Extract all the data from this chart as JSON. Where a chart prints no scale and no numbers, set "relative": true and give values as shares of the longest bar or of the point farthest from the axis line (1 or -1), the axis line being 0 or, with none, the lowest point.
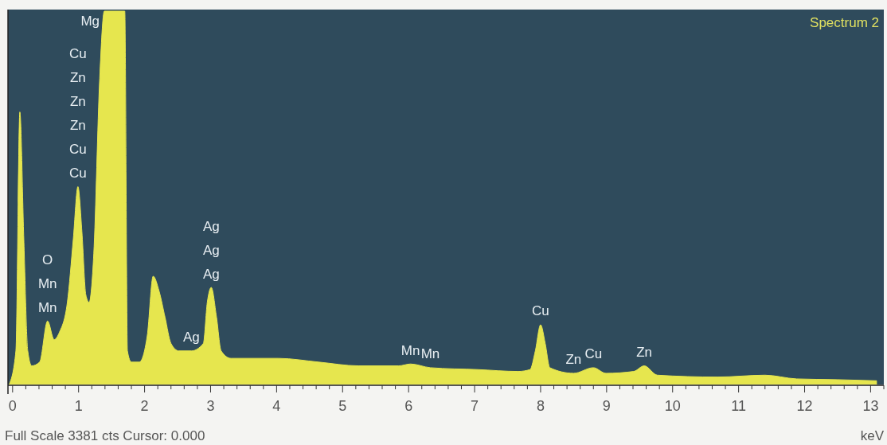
{
  "chart_data": {
    "type": "area",
    "relative": true,
    "xlabel": "keV",
    "color": "#e6e64e",
    "grid": false,
    "xlim": [
      -0.07,
      13.2
    ],
    "xticks": [
      0,
      {
        "value": 0.2,
        "label": null
      },
      {
        "value": 0.4,
        "label": null
      },
      {
        "value": 0.6,
        "label": null
      },
      {
        "value": 0.8,
        "label": null
      },
      1,
      {
        "value": 1.2,
        "label": null
      },
      {
        "value": 1.4,
        "label": null
      },
      {
        "value": 1.6,
        "label": null
      },
      {
        "value": 1.8,
        "label": null
      },
      2,
      {
        "value": 2.2,
        "label": null
      },
      {
        "value": 2.4,
        "label": null
      },
      {
        "value": 2.6,
        "label": null
      },
      {
        "value": 2.8,
        "label": null
      },
      3,
      {
        "value": 3.2,
        "label": null
      },
      {
        "value": 3.4,
        "label": null
      },
      {
        "value": 3.6,
        "label": null
      },
      {
        "value": 3.8,
        "label": null
      },
      4,
      {
        "value": 4.2,
        "label": null
      },
      {
        "value": 4.4,
        "label": null
      },
      {
        "value": 4.6,
        "label": null
      },
      {
        "value": 4.8,
        "label": null
      },
      5,
      {
        "value": 5.2,
        "label": null
      },
      {
        "value": 5.4,
        "label": null
      },
      {
        "value": 5.6,
        "label": null
      },
      {
        "value": 5.8,
        "label": null
      },
      6,
      {
        "value": 6.2,
        "label": null
      },
      {
        "value": 6.4,
        "label": null
      },
      {
        "value": 6.6,
        "label": null
      },
      {
        "value": 6.8,
        "label": null
      },
      7,
      {
        "value": 7.2,
        "label": null
      },
      {
        "value": 7.4,
        "label": null
      },
      {
        "value": 7.6,
        "label": null
      },
      {
        "value": 7.8,
        "label": null
      },
      8,
      {
        "value": 8.2,
        "label": null
      },
      {
        "value": 8.4,
        "label": null
      },
      {
        "value": 8.6,
        "label": null
      },
      {
        "value": 8.8,
        "label": null
      },
      9,
      {
        "value": 9.2,
        "label": null
      },
      {
        "value": 9.4,
        "label": null
      },
      {
        "value": 9.6,
        "label": null
      },
      {
        "value": 9.8,
        "label": null
      },
      10,
      {
        "value": 10.2,
        "label": null
      },
      {
        "value": 10.4,
        "label": null
      },
      {
        "value": 10.6,
        "label": null
      },
      {
        "value": 10.8,
        "label": null
      },
      11,
      {
        "value": 11.2,
        "label": null
      },
      {
        "value": 11.4,
        "label": null
      },
      {
        "value": 11.6,
        "label": null
      },
      {
        "value": 11.8,
        "label": null
      },
      12,
      {
        "value": 12.2,
        "label": null
      },
      {
        "value": 12.4,
        "label": null
      },
      {
        "value": 12.6,
        "label": null
      },
      {
        "value": 12.8,
        "label": null
      },
      13,
      {
        "value": 13.2,
        "label": null
      }
    ],
    "x": [
      -0.05,
      0.05,
      0.11,
      0.17,
      0.23,
      0.29,
      0.41,
      0.53,
      0.63,
      0.71,
      0.83,
      0.92,
      0.99,
      1.05,
      1.11,
      1.16,
      1.23,
      1.32,
      1.39,
      1.7,
      1.74,
      1.8,
      1.92,
      2.04,
      2.13,
      2.22,
      2.31,
      2.4,
      2.52,
      2.71,
      2.89,
      2.95,
      3.01,
      3.09,
      3.16,
      3.31,
      4.03,
      4.64,
      5.24,
      5.85,
      6.03,
      6.33,
      7.05,
      7.66,
      7.84,
      7.92,
      8.0,
      8.07,
      8.14,
      8.5,
      8.8,
      8.99,
      9.41,
      9.57,
      9.77,
      10.68,
      11.4,
      11.88,
      12.49,
      13.09
    ],
    "values": [
      0,
      0.09,
      0.73,
      0.39,
      0.09,
      0.05,
      0.06,
      0.17,
      0.12,
      0.14,
      0.22,
      0.39,
      0.53,
      0.41,
      0.24,
      0.22,
      0.35,
      0.82,
      1,
      1,
      0.09,
      0.06,
      0.06,
      0.13,
      0.29,
      0.25,
      0.18,
      0.11,
      0.09,
      0.09,
      0.11,
      0.22,
      0.26,
      0.18,
      0.09,
      0.07,
      0.07,
      0.06,
      0.05,
      0.05,
      0.055,
      0.045,
      0.04,
      0.035,
      0.04,
      0.09,
      0.16,
      0.11,
      0.045,
      0.03,
      0.045,
      0.03,
      0.035,
      0.05,
      0.025,
      0.02,
      0.025,
      0.015,
      0.013,
      0.01
    ],
    "annotations": [
      "Spectrum 2",
      "Full Scale 3381 cts Cursor: 0.000",
      {
        "text": "Mg",
        "x": 1.39,
        "y": 1
      },
      "Cu",
      "Zn",
      "Zn",
      "Zn",
      {
        "text": "Cu",
        "x": 0.99,
        "y": 0.53
      },
      {
        "text": "Cu",
        "x": 0.99,
        "y": 0.53
      },
      "O",
      {
        "text": "Mn",
        "x": 0.53,
        "y": 0.17
      },
      {
        "text": "Mn",
        "x": 0.53,
        "y": 0.17
      },
      "Ag",
      {
        "text": "Ag",
        "x": 3.01,
        "y": 0.26
      },
      {
        "text": "Ag",
        "x": 3.01,
        "y": 0.26
      },
      {
        "text": "Ag",
        "x": 2.71,
        "y": 0.09
      },
      {
        "text": "Mn",
        "x": 6.03,
        "y": 0.055
      },
      {
        "text": "Mn",
        "x": 6.33,
        "y": 0.045
      },
      {
        "text": "Cu",
        "x": 8.0,
        "y": 0.16
      },
      {
        "text": "Zn",
        "x": 8.5,
        "y": 0.03
      },
      {
        "text": "Cu",
        "x": 8.8,
        "y": 0.045
      },
      {
        "text": "Zn",
        "x": 9.57,
        "y": 0.05
      }
    ]
  }
}
